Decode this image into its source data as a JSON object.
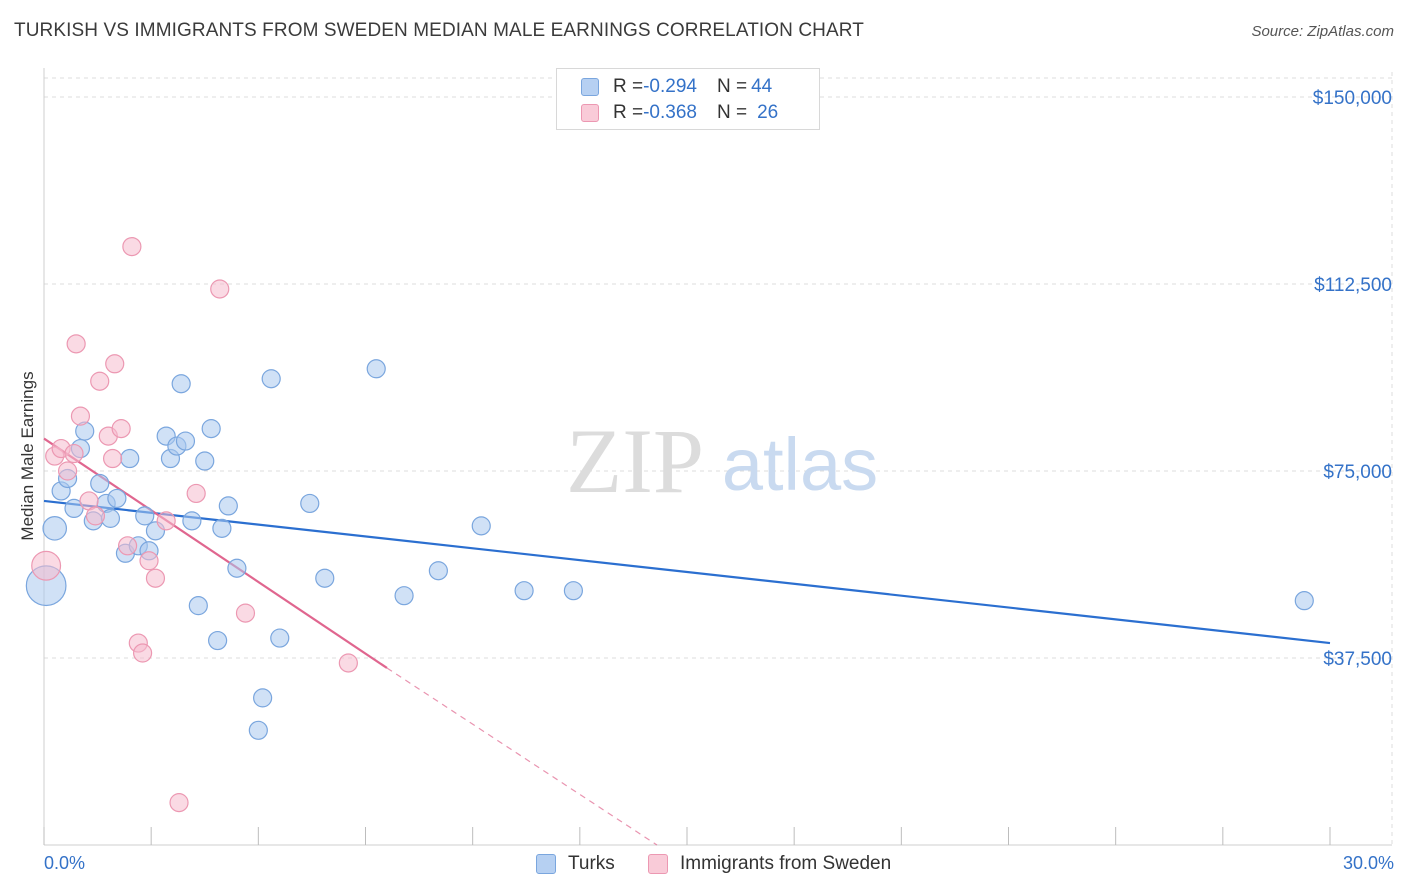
{
  "title": "TURKISH VS IMMIGRANTS FROM SWEDEN MEDIAN MALE EARNINGS CORRELATION CHART",
  "source": "Source: ZipAtlas.com",
  "watermark": {
    "zip": "ZIP",
    "atlas": "atlas"
  },
  "legend": [
    {
      "r_label": "R = ",
      "r_value": "-0.294",
      "n_label": "N = ",
      "n_value": "44"
    },
    {
      "r_label": "R = ",
      "r_value": "-0.368",
      "n_label": "N = ",
      "n_value": "26"
    }
  ],
  "bottom_legend": [
    "Turks",
    "Immigrants from Sweden"
  ],
  "colors": {
    "turks_fill": "#a9c8ef",
    "turks_stroke": "#7aa6de",
    "turks_line": "#2b6fd0",
    "sweden_fill": "#f6bccd",
    "sweden_stroke": "#ec98b2",
    "sweden_line": "#e0668f",
    "axis_text": "#3472c8",
    "grid": "#dddddd"
  },
  "chart_data": {
    "type": "scatter",
    "title": "TURKISH VS IMMIGRANTS FROM SWEDEN MEDIAN MALE EARNINGS CORRELATION CHART",
    "xlabel": "",
    "ylabel": "Median Male Earnings",
    "xlim": [
      0,
      30
    ],
    "ylim": [
      0,
      150000
    ],
    "x_tick_labels": [
      "0.0%",
      "30.0%"
    ],
    "y_ticks": [
      37500,
      75000,
      112500,
      150000
    ],
    "y_tick_labels": [
      "$37,500",
      "$75,000",
      "$112,500",
      "$150,000"
    ],
    "series": [
      {
        "name": "Turks",
        "points": [
          {
            "x": 0.05,
            "y": 52000,
            "s": 2.2
          },
          {
            "x": 0.25,
            "y": 63500,
            "s": 1.3
          },
          {
            "x": 0.4,
            "y": 71000,
            "s": 1
          },
          {
            "x": 0.55,
            "y": 73500,
            "s": 1
          },
          {
            "x": 0.7,
            "y": 67500,
            "s": 1
          },
          {
            "x": 0.85,
            "y": 79500,
            "s": 1
          },
          {
            "x": 0.95,
            "y": 83000,
            "s": 1
          },
          {
            "x": 1.15,
            "y": 65000,
            "s": 1
          },
          {
            "x": 1.3,
            "y": 72500,
            "s": 1
          },
          {
            "x": 1.45,
            "y": 68500,
            "s": 1
          },
          {
            "x": 1.55,
            "y": 65500,
            "s": 1
          },
          {
            "x": 1.7,
            "y": 69500,
            "s": 1
          },
          {
            "x": 1.9,
            "y": 58500,
            "s": 1
          },
          {
            "x": 2.0,
            "y": 77500,
            "s": 1
          },
          {
            "x": 2.2,
            "y": 60000,
            "s": 1
          },
          {
            "x": 2.35,
            "y": 66000,
            "s": 1
          },
          {
            "x": 2.45,
            "y": 59000,
            "s": 1
          },
          {
            "x": 2.6,
            "y": 63000,
            "s": 1
          },
          {
            "x": 2.85,
            "y": 82000,
            "s": 1
          },
          {
            "x": 2.95,
            "y": 77500,
            "s": 1
          },
          {
            "x": 3.1,
            "y": 80000,
            "s": 1
          },
          {
            "x": 3.2,
            "y": 92500,
            "s": 1
          },
          {
            "x": 3.3,
            "y": 81000,
            "s": 1
          },
          {
            "x": 3.45,
            "y": 65000,
            "s": 1
          },
          {
            "x": 3.6,
            "y": 48000,
            "s": 1
          },
          {
            "x": 3.75,
            "y": 77000,
            "s": 1
          },
          {
            "x": 3.9,
            "y": 83500,
            "s": 1
          },
          {
            "x": 4.05,
            "y": 41000,
            "s": 1
          },
          {
            "x": 4.15,
            "y": 63500,
            "s": 1
          },
          {
            "x": 4.3,
            "y": 68000,
            "s": 1
          },
          {
            "x": 4.5,
            "y": 55500,
            "s": 1
          },
          {
            "x": 5.1,
            "y": 29500,
            "s": 1
          },
          {
            "x": 5.0,
            "y": 23000,
            "s": 1
          },
          {
            "x": 5.3,
            "y": 93500,
            "s": 1
          },
          {
            "x": 5.5,
            "y": 41500,
            "s": 1
          },
          {
            "x": 6.2,
            "y": 68500,
            "s": 1
          },
          {
            "x": 6.55,
            "y": 53500,
            "s": 1
          },
          {
            "x": 7.75,
            "y": 95500,
            "s": 1
          },
          {
            "x": 8.4,
            "y": 50000,
            "s": 1
          },
          {
            "x": 9.2,
            "y": 55000,
            "s": 1
          },
          {
            "x": 10.2,
            "y": 64000,
            "s": 1
          },
          {
            "x": 11.2,
            "y": 51000,
            "s": 1
          },
          {
            "x": 12.35,
            "y": 51000,
            "s": 1
          },
          {
            "x": 29.4,
            "y": 49000,
            "s": 1
          }
        ],
        "trend": {
          "x": [
            0,
            30
          ],
          "y": [
            69000,
            40500
          ]
        }
      },
      {
        "name": "Immigrants from Sweden",
        "points": [
          {
            "x": 0.05,
            "y": 56000,
            "s": 1.6
          },
          {
            "x": 0.25,
            "y": 78000,
            "s": 1
          },
          {
            "x": 0.4,
            "y": 79500,
            "s": 1
          },
          {
            "x": 0.55,
            "y": 75000,
            "s": 1
          },
          {
            "x": 0.7,
            "y": 78500,
            "s": 1
          },
          {
            "x": 0.75,
            "y": 100500,
            "s": 1
          },
          {
            "x": 0.85,
            "y": 86000,
            "s": 1
          },
          {
            "x": 1.05,
            "y": 69000,
            "s": 1
          },
          {
            "x": 1.2,
            "y": 66000,
            "s": 1
          },
          {
            "x": 1.3,
            "y": 93000,
            "s": 1
          },
          {
            "x": 1.5,
            "y": 82000,
            "s": 1
          },
          {
            "x": 1.6,
            "y": 77500,
            "s": 1
          },
          {
            "x": 1.65,
            "y": 96500,
            "s": 1
          },
          {
            "x": 1.8,
            "y": 83500,
            "s": 1
          },
          {
            "x": 1.95,
            "y": 60000,
            "s": 1
          },
          {
            "x": 2.05,
            "y": 120000,
            "s": 1
          },
          {
            "x": 2.2,
            "y": 40500,
            "s": 1
          },
          {
            "x": 2.3,
            "y": 38500,
            "s": 1
          },
          {
            "x": 2.45,
            "y": 57000,
            "s": 1
          },
          {
            "x": 2.6,
            "y": 53500,
            "s": 1
          },
          {
            "x": 2.85,
            "y": 65000,
            "s": 1
          },
          {
            "x": 3.15,
            "y": 8500,
            "s": 1
          },
          {
            "x": 3.55,
            "y": 70500,
            "s": 1
          },
          {
            "x": 4.1,
            "y": 111500,
            "s": 1
          },
          {
            "x": 4.7,
            "y": 46500,
            "s": 1
          },
          {
            "x": 7.1,
            "y": 36500,
            "s": 1
          }
        ],
        "trend": {
          "x": [
            0,
            8
          ],
          "y": [
            81500,
            35500
          ]
        },
        "trend_extension": {
          "x": [
            8,
            14.3
          ],
          "y": [
            35500,
            0
          ]
        }
      }
    ]
  }
}
